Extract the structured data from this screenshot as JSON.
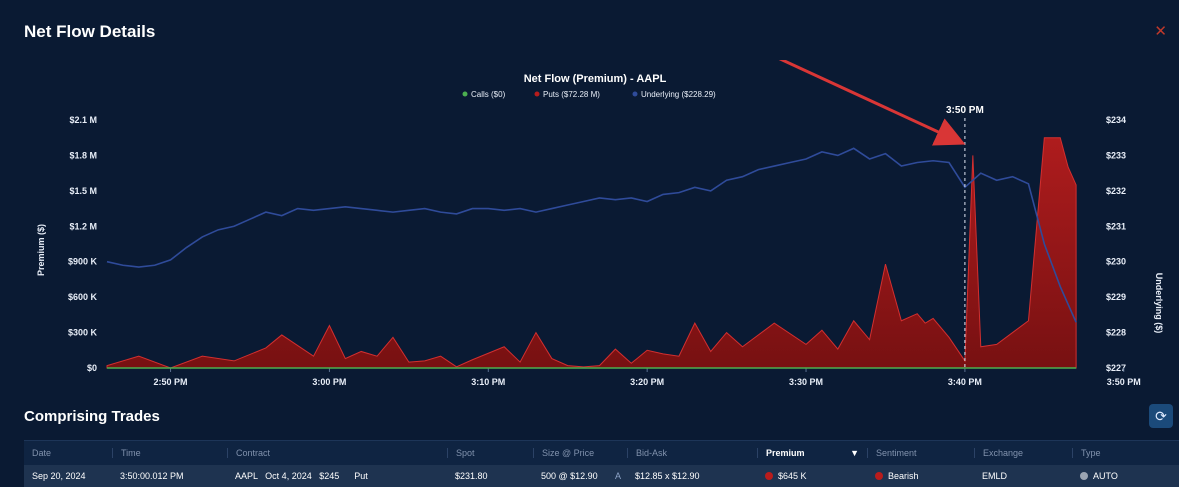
{
  "panel": {
    "title": "Net Flow Details",
    "close_icon": "close-icon"
  },
  "chart_data": {
    "type": "area",
    "title": "Net Flow (Premium) - AAPL",
    "legend": [
      "Calls ($0)",
      "Puts ($72.28 M)",
      "Underlying ($228.29)"
    ],
    "legend_position": "top-center",
    "ylabel": "Premium ($)",
    "y2label": "Underlying ($)",
    "yticks": [
      "$0",
      "$300 K",
      "$600 K",
      "$900 K",
      "$1.2 M",
      "$1.5 M",
      "$1.8 M",
      "$2.1 M"
    ],
    "y2ticks": [
      "$227",
      "$228",
      "$229",
      "$230",
      "$231",
      "$232",
      "$233",
      "$234"
    ],
    "xticks": [
      "2:50 PM",
      "3:00 PM",
      "3:10 PM",
      "3:20 PM",
      "3:30 PM",
      "3:40 PM",
      "3:50 PM"
    ],
    "ylim": [
      0,
      2100000
    ],
    "y2lim": [
      227,
      234
    ],
    "marker": "3:50 PM",
    "colors": {
      "calls": "#4caf50",
      "puts": "#b71c1c",
      "underlying": "#2f4b9a"
    },
    "series": [
      {
        "name": "Puts",
        "x": [
          -4,
          -2,
          0,
          2,
          4,
          6,
          7,
          9,
          10,
          11,
          12,
          13,
          14,
          15,
          16,
          17,
          18,
          19,
          21,
          22,
          23,
          24,
          25,
          26,
          27,
          28,
          29,
          30,
          31,
          32,
          33,
          34,
          35,
          36,
          38,
          40,
          41,
          42,
          43,
          44,
          45,
          46,
          47,
          47.5,
          48,
          49,
          50,
          50.5,
          51,
          52,
          53,
          54,
          55,
          56,
          56.5,
          57
        ],
        "values": [
          20000,
          100000,
          0,
          100000,
          60000,
          170000,
          280000,
          100000,
          360000,
          80000,
          140000,
          100000,
          260000,
          50000,
          60000,
          100000,
          10000,
          70000,
          180000,
          50000,
          300000,
          80000,
          20000,
          10000,
          20000,
          160000,
          40000,
          150000,
          120000,
          100000,
          380000,
          140000,
          300000,
          180000,
          380000,
          200000,
          320000,
          160000,
          400000,
          240000,
          880000,
          400000,
          460000,
          380000,
          420000,
          260000,
          60000,
          1800000,
          180000,
          200000,
          300000,
          400000,
          1950000,
          1950000,
          1700000,
          1550000
        ]
      },
      {
        "name": "Underlying",
        "x": [
          -4,
          -3,
          -2,
          -1,
          0,
          1,
          2,
          3,
          4,
          5,
          6,
          7,
          8,
          9,
          10,
          11,
          12,
          13,
          14,
          15,
          16,
          17,
          18,
          19,
          20,
          21,
          22,
          23,
          24,
          25,
          26,
          27,
          28,
          29,
          30,
          31,
          32,
          33,
          34,
          35,
          36,
          37,
          38,
          39,
          40,
          41,
          42,
          43,
          44,
          45,
          46,
          47,
          48,
          49,
          50,
          51,
          52,
          53,
          54,
          55,
          56,
          57
        ],
        "values": [
          230.0,
          229.9,
          229.85,
          229.9,
          230.05,
          230.4,
          230.7,
          230.9,
          231.0,
          231.2,
          231.4,
          231.3,
          231.5,
          231.45,
          231.5,
          231.55,
          231.5,
          231.45,
          231.4,
          231.45,
          231.5,
          231.4,
          231.35,
          231.5,
          231.5,
          231.45,
          231.5,
          231.4,
          231.5,
          231.6,
          231.7,
          231.8,
          231.75,
          231.8,
          231.7,
          231.9,
          231.95,
          232.1,
          232.0,
          232.3,
          232.4,
          232.6,
          232.7,
          232.8,
          232.9,
          233.1,
          233.0,
          233.2,
          232.9,
          233.05,
          232.7,
          232.8,
          232.85,
          232.8,
          232.1,
          232.5,
          232.3,
          232.4,
          232.2,
          230.5,
          229.3,
          228.29
        ]
      }
    ]
  },
  "trades": {
    "title": "Comprising Trades",
    "refresh_icon": "refresh-icon",
    "columns": [
      "Date",
      "Time",
      "Contract",
      "Spot",
      "Size @ Price",
      "Bid-Ask",
      "Premium",
      "Sentiment",
      "Exchange",
      "Type"
    ],
    "sorted_column_icon": "sort-down-icon",
    "rows": [
      {
        "date": "Sep 20, 2024",
        "time": "3:50:00.012 PM",
        "contract": "AAPL   Oct 4, 2024   $245      Put",
        "spot": "$231.80",
        "size_price": "500 @ $12.90",
        "side": "A",
        "bid_ask": "$12.85 x $12.90",
        "premium": "$645 K",
        "sentiment": "Bearish",
        "exchange": "EMLD",
        "type": "AUTO"
      }
    ]
  },
  "annotation": {
    "arrow_color": "#d93636",
    "marker_label": "3:50 PM"
  }
}
